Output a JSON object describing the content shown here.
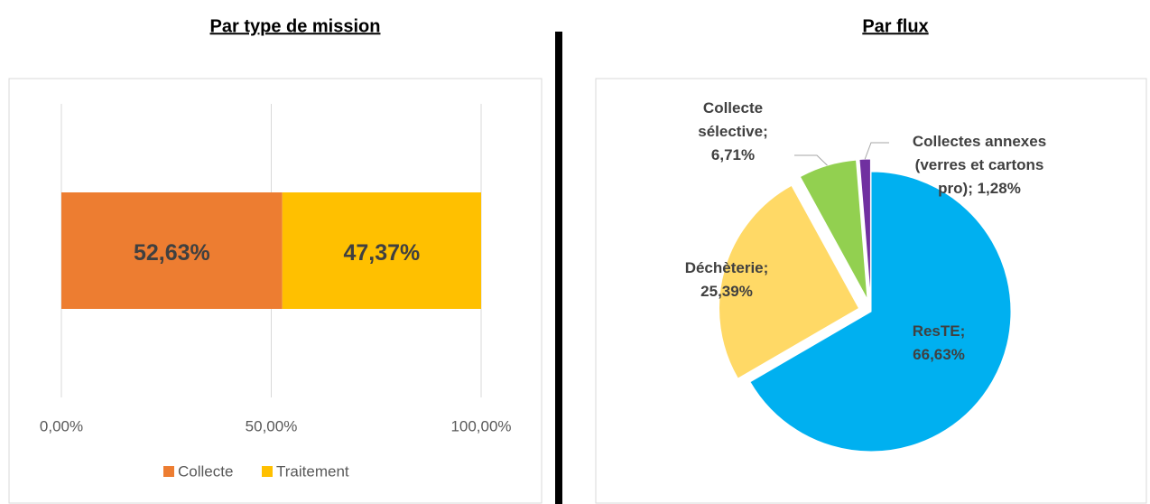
{
  "chart_data": [
    {
      "type": "bar",
      "title": "Par type de mission",
      "orientation": "horizontal",
      "stacked": true,
      "series": [
        {
          "name": "Collecte",
          "color": "#ed7d31",
          "values": [
            52.63
          ],
          "value_labels": [
            "52,63%"
          ]
        },
        {
          "name": "Traitement",
          "color": "#ffc000",
          "values": [
            47.37
          ],
          "value_labels": [
            "47,37%"
          ]
        }
      ],
      "xlim": [
        0,
        100
      ],
      "xticks": [
        {
          "value": 0,
          "label": "0,00%"
        },
        {
          "value": 50,
          "label": "50,00%"
        },
        {
          "value": 100,
          "label": "100,00%"
        }
      ],
      "grid": true,
      "legend": "bottom"
    },
    {
      "type": "pie",
      "title": "Par flux",
      "labels": [
        "ResTE; 66,63%",
        "Déchèterie; 25,39%",
        "Collecte sélective; 6,71%",
        "Collectes annexes (verres et cartons pro); 1,28%"
      ],
      "values": [
        66.63,
        25.39,
        6.71,
        1.28
      ],
      "colors": [
        "#00b0f0",
        "#ffd966",
        "#92d050",
        "#7030a0"
      ]
    }
  ]
}
